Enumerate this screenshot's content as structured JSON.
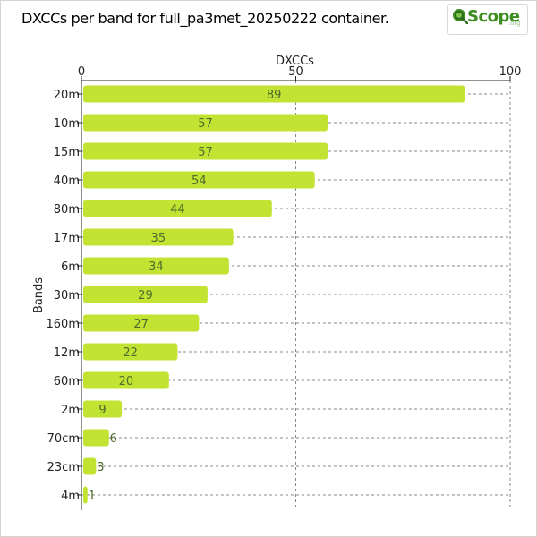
{
  "title": "DXCCs per band for full_pa3met_20250222 container.",
  "logo": {
    "brand": "Scope",
    "suffix": ".org",
    "icon": "magnifier-globe-icon",
    "color": "#3a8d1e"
  },
  "colors": {
    "bar": "#c2e332",
    "bar_label": "#4d6b2e",
    "grid": "#888888",
    "axis": "#222222"
  },
  "chart_data": {
    "type": "bar",
    "orientation": "horizontal",
    "title": "DXCCs per band for full_pa3met_20250222 container.",
    "xlabel": "DXCCs",
    "ylabel": "Bands",
    "xlim": [
      0,
      100
    ],
    "xticks": [
      0,
      50,
      100
    ],
    "x_axis_position": "top",
    "grid": true,
    "categories": [
      "20m",
      "10m",
      "15m",
      "40m",
      "80m",
      "17m",
      "6m",
      "30m",
      "160m",
      "12m",
      "60m",
      "2m",
      "70cm",
      "23cm",
      "4m"
    ],
    "values": [
      89,
      57,
      57,
      54,
      44,
      35,
      34,
      29,
      27,
      22,
      20,
      9,
      6,
      3,
      1
    ]
  }
}
